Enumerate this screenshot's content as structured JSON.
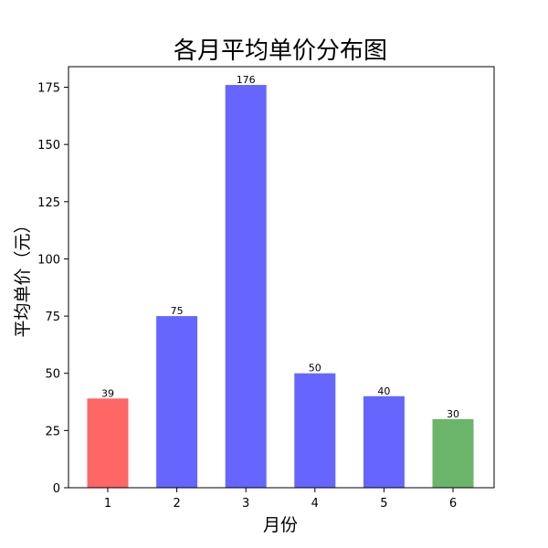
{
  "chart_data": {
    "type": "bar",
    "title": "各月平均单价分布图",
    "xlabel": "月份",
    "ylabel": "平均单价（元）",
    "categories": [
      "1",
      "2",
      "3",
      "4",
      "5",
      "6"
    ],
    "values": [
      39,
      75,
      176,
      50,
      40,
      30
    ],
    "data_labels": [
      "39",
      "75",
      "176",
      "50",
      "40",
      "30"
    ],
    "bar_colors": [
      "#ff6666",
      "#6666ff",
      "#6666ff",
      "#6666ff",
      "#6666ff",
      "#6bb56b"
    ],
    "ylim": [
      0,
      184
    ],
    "yticks": [
      0,
      25,
      50,
      75,
      100,
      125,
      150,
      175
    ],
    "grid": false
  }
}
